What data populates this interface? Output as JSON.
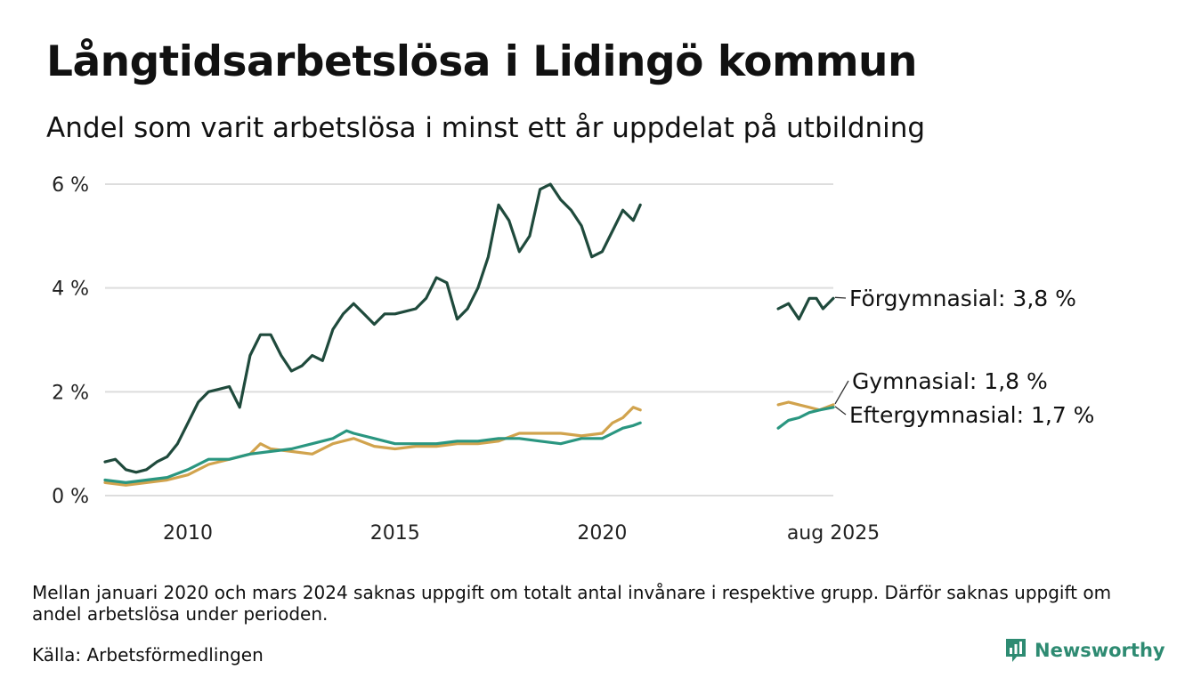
{
  "title": "Långtidsarbetslösa i Lidingö kommun",
  "subtitle": "Andel som varit arbetslösa i minst ett år uppdelat på utbildning",
  "note": "Mellan januari 2020 och mars 2024 saknas uppgift om totalt antal invånare i respektive grupp. Därför saknas uppgift om andel arbetslösa under perioden.",
  "source": "Källa: Arbetsförmedlingen",
  "logo_text": "Newsworthy",
  "colors": {
    "forgymnasial": "#1f4a3c",
    "gymnasial": "#d1a34d",
    "eftergymnasial": "#2a9680",
    "grid": "#dddddd",
    "logo": "#2e8b72"
  },
  "chart_data": {
    "type": "line",
    "xlabel": "",
    "ylabel": "",
    "ylim": [
      0,
      6
    ],
    "xlim": [
      2008.0,
      2025.58
    ],
    "y_ticks": [
      {
        "value": 0,
        "label": "0 %"
      },
      {
        "value": 2,
        "label": "2 %"
      },
      {
        "value": 4,
        "label": "4 %"
      },
      {
        "value": 6,
        "label": "6 %"
      }
    ],
    "x_ticks": [
      {
        "value": 2010,
        "label": "2010"
      },
      {
        "value": 2015,
        "label": "2015"
      },
      {
        "value": 2020,
        "label": "2020"
      },
      {
        "value": 2025.58,
        "label": "aug 2025"
      }
    ],
    "grid": true,
    "legend": "direct labels at right end of lines",
    "series": [
      {
        "name": "Förgymnasial",
        "end_label": "Förgymnasial: 3,8 %",
        "color_key": "forgymnasial",
        "segments": [
          {
            "x": [
              2008.0,
              2008.25,
              2008.5,
              2008.75,
              2009.0,
              2009.25,
              2009.5,
              2009.75,
              2010.0,
              2010.25,
              2010.5,
              2010.75,
              2011.0,
              2011.25,
              2011.5,
              2011.75,
              2012.0,
              2012.25,
              2012.5,
              2012.75,
              2013.0,
              2013.25,
              2013.5,
              2013.75,
              2014.0,
              2014.25,
              2014.5,
              2014.75,
              2015.0,
              2015.25,
              2015.5,
              2015.75,
              2016.0,
              2016.25,
              2016.5,
              2016.75,
              2017.0,
              2017.25,
              2017.5,
              2017.75,
              2018.0,
              2018.25,
              2018.5,
              2018.75,
              2019.0,
              2019.25,
              2019.5,
              2019.75,
              2020.0,
              2020.25,
              2020.5,
              2020.75,
              2020.92
            ],
            "y": [
              0.65,
              0.7,
              0.5,
              0.45,
              0.5,
              0.65,
              0.75,
              1.0,
              1.4,
              1.8,
              2.0,
              2.05,
              2.1,
              1.7,
              2.7,
              3.1,
              3.1,
              2.7,
              2.4,
              2.5,
              2.7,
              2.6,
              3.2,
              3.5,
              3.7,
              3.5,
              3.3,
              3.5,
              3.5,
              3.55,
              3.6,
              3.8,
              4.2,
              4.1,
              3.4,
              3.6,
              4.0,
              4.6,
              5.6,
              5.3,
              4.7,
              5.0,
              5.9,
              6.0,
              5.7,
              5.5,
              5.2,
              4.6,
              4.7,
              5.1,
              5.5,
              5.3,
              5.6
            ]
          },
          {
            "x": [
              2024.25,
              2024.5,
              2024.75,
              2025.0,
              2025.17,
              2025.33,
              2025.58
            ],
            "y": [
              3.6,
              3.7,
              3.4,
              3.8,
              3.8,
              3.6,
              3.8
            ]
          }
        ]
      },
      {
        "name": "Gymnasial",
        "end_label": "Gymnasial: 1,8 %",
        "color_key": "gymnasial",
        "segments": [
          {
            "x": [
              2008.0,
              2008.5,
              2009.0,
              2009.5,
              2010.0,
              2010.5,
              2011.0,
              2011.5,
              2011.75,
              2012.0,
              2012.5,
              2013.0,
              2013.5,
              2014.0,
              2014.5,
              2015.0,
              2015.5,
              2016.0,
              2016.5,
              2017.0,
              2017.5,
              2018.0,
              2018.5,
              2019.0,
              2019.5,
              2020.0,
              2020.25,
              2020.5,
              2020.75,
              2020.92
            ],
            "y": [
              0.25,
              0.2,
              0.25,
              0.3,
              0.4,
              0.6,
              0.7,
              0.8,
              1.0,
              0.9,
              0.85,
              0.8,
              1.0,
              1.1,
              0.95,
              0.9,
              0.95,
              0.95,
              1.0,
              1.0,
              1.05,
              1.2,
              1.2,
              1.2,
              1.15,
              1.2,
              1.4,
              1.5,
              1.7,
              1.65
            ]
          },
          {
            "x": [
              2024.25,
              2024.5,
              2024.75,
              2025.0,
              2025.25,
              2025.58
            ],
            "y": [
              1.75,
              1.8,
              1.75,
              1.7,
              1.65,
              1.75
            ]
          }
        ]
      },
      {
        "name": "Eftergymnasial",
        "end_label": "Eftergymnasial: 1,7 %",
        "color_key": "eftergymnasial",
        "segments": [
          {
            "x": [
              2008.0,
              2008.5,
              2009.0,
              2009.5,
              2010.0,
              2010.5,
              2011.0,
              2011.5,
              2012.0,
              2012.5,
              2013.0,
              2013.5,
              2013.83,
              2014.0,
              2014.5,
              2015.0,
              2015.5,
              2016.0,
              2016.5,
              2017.0,
              2017.5,
              2018.0,
              2018.5,
              2019.0,
              2019.5,
              2020.0,
              2020.25,
              2020.5,
              2020.75,
              2020.92
            ],
            "y": [
              0.3,
              0.25,
              0.3,
              0.35,
              0.5,
              0.7,
              0.7,
              0.8,
              0.85,
              0.9,
              1.0,
              1.1,
              1.25,
              1.2,
              1.1,
              1.0,
              1.0,
              1.0,
              1.05,
              1.05,
              1.1,
              1.1,
              1.05,
              1.0,
              1.1,
              1.1,
              1.2,
              1.3,
              1.35,
              1.4
            ]
          },
          {
            "x": [
              2024.25,
              2024.5,
              2024.75,
              2025.0,
              2025.25,
              2025.58
            ],
            "y": [
              1.3,
              1.45,
              1.5,
              1.6,
              1.65,
              1.7
            ]
          }
        ]
      }
    ]
  }
}
